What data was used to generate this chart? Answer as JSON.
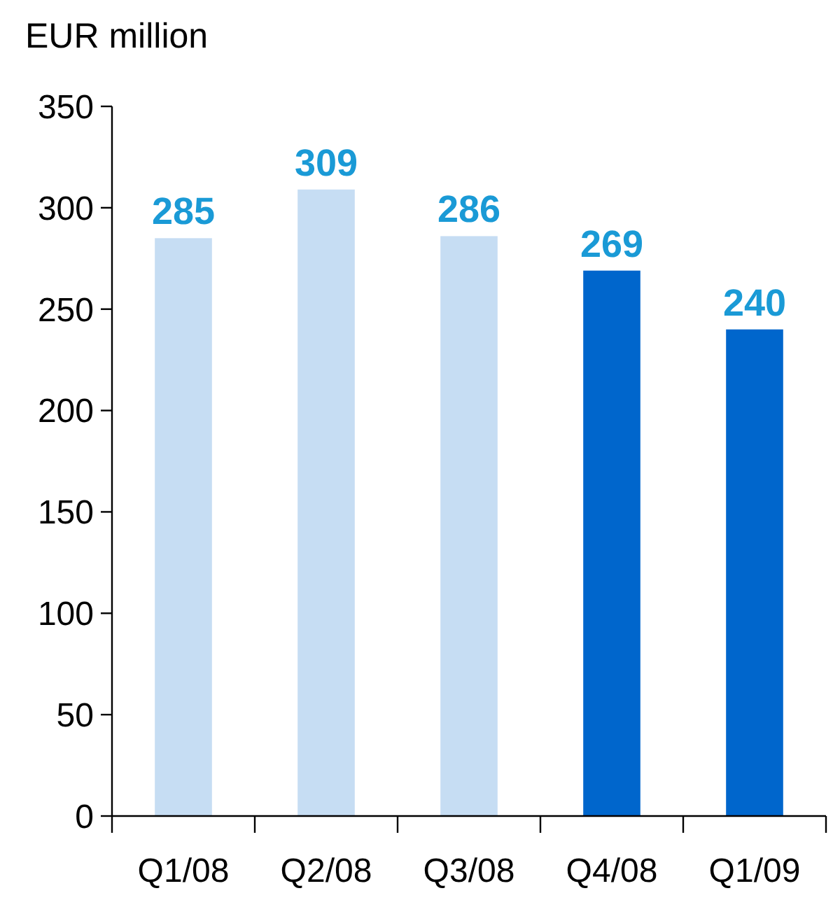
{
  "chart_data": {
    "type": "bar",
    "ylabel": "EUR million",
    "categories": [
      "Q1/08",
      "Q2/08",
      "Q3/08",
      "Q4/08",
      "Q1/09"
    ],
    "values": [
      285,
      309,
      286,
      269,
      240
    ],
    "colors": [
      "#c6ddf3",
      "#c6ddf3",
      "#c6ddf3",
      "#0066cc",
      "#0066cc"
    ],
    "ylim": [
      0,
      350
    ],
    "yticks": [
      0,
      50,
      100,
      150,
      200,
      250,
      300,
      350
    ],
    "data_labels": true
  }
}
